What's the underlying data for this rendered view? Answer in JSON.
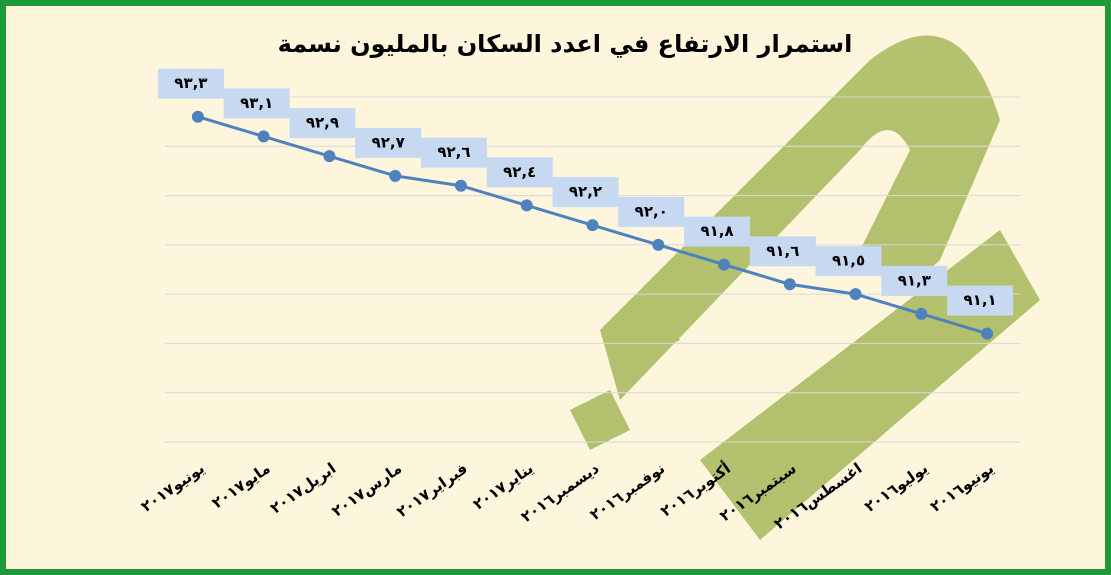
{
  "chart_data": {
    "type": "line",
    "title": "استمرار الارتفاع في اعدد السكان بالمليون نسمة",
    "categories": [
      "يونيو٢٠١٧",
      "مايو٢٠١٧",
      "ابريل٢٠١٧",
      "مارس٢٠١٧",
      "فبراير٢٠١٧",
      "يناير٢٠١٧",
      "ديسمبر٢٠١٦",
      "نوفمبر٢٠١٦",
      "أكتوبر٢٠١٦",
      "سبتمبر٢٠١٦",
      "اغسطس٢٠١٦",
      "يوليو٢٠١٦",
      "يونيو٢٠١٦"
    ],
    "values": [
      93.3,
      93.1,
      92.9,
      92.7,
      92.6,
      92.4,
      92.2,
      92.0,
      91.8,
      91.6,
      91.5,
      91.3,
      91.1
    ],
    "value_labels": [
      "٩٣,٣",
      "٩٣,١",
      "٩٢,٩",
      "٩٢,٧",
      "٩٢,٦",
      "٩٢,٤",
      "٩٢,٢",
      "٩٢,٠",
      "٩١,٨",
      "٩١,٦",
      "٩١,٥",
      "٩١,٣",
      "٩١,١"
    ],
    "color": "#4f81bd",
    "ylim": [
      90,
      93.5
    ],
    "yticks": [
      90,
      90.5,
      91,
      91.5,
      92,
      92.5,
      93,
      93.5
    ],
    "grid": true
  }
}
